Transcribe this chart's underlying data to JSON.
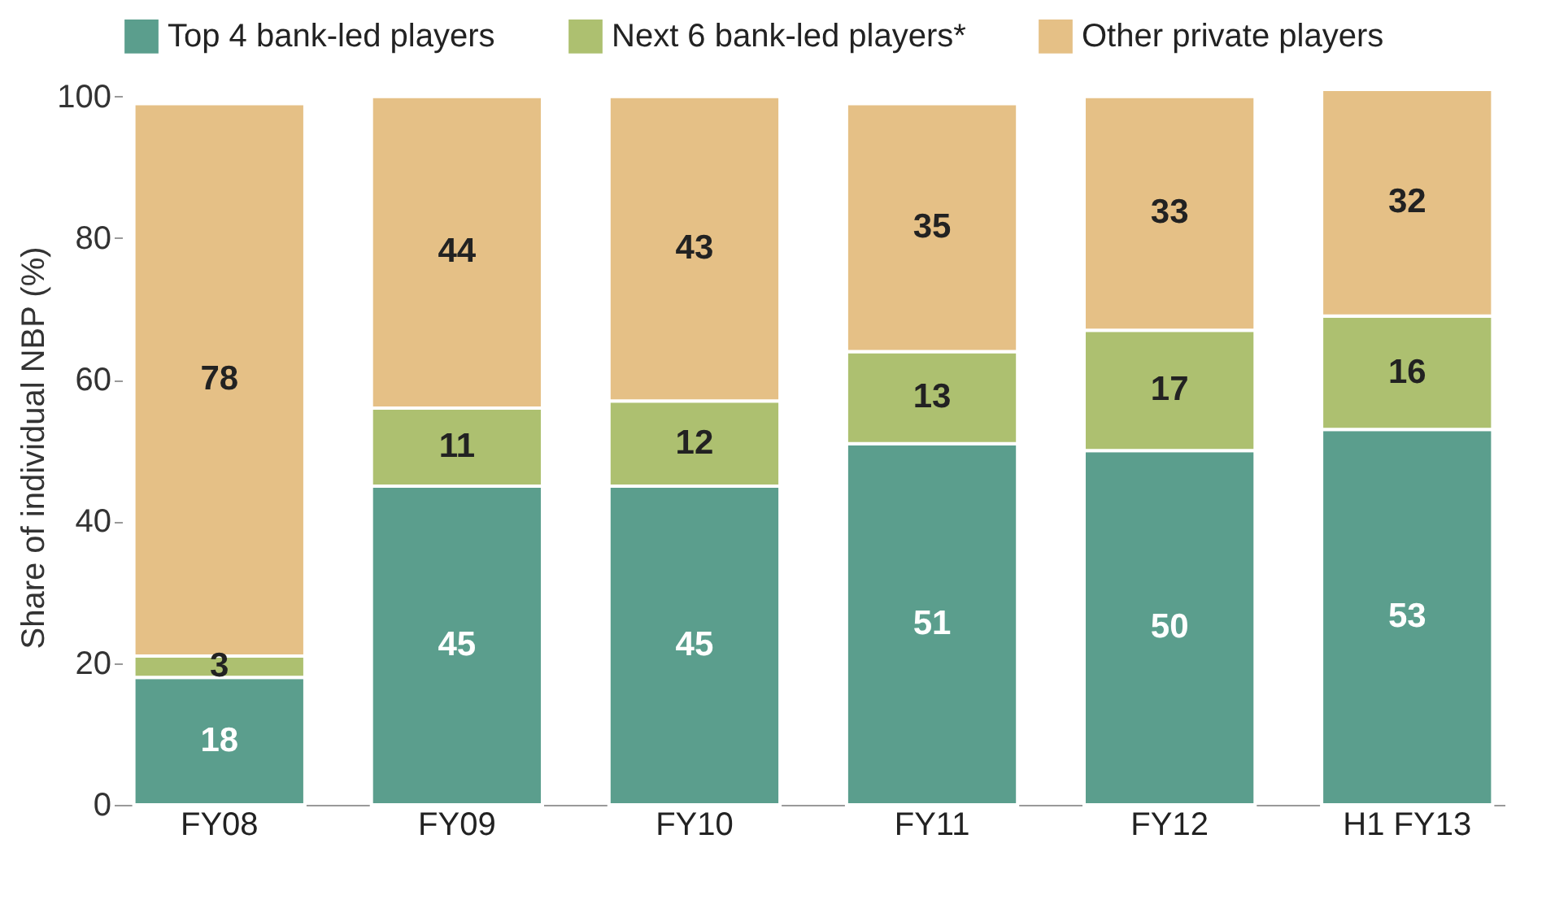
{
  "chart_data": {
    "type": "bar",
    "stacked": true,
    "ylabel": "Share of individual NBP (%)",
    "categories": [
      "FY08",
      "FY09",
      "FY10",
      "FY11",
      "FY12",
      "H1 FY13"
    ],
    "series": [
      {
        "name": "Top 4 bank-led players",
        "color": "#5b9e8d",
        "values": [
          18,
          45,
          45,
          51,
          50,
          53
        ]
      },
      {
        "name": "Next 6 bank-led players*",
        "color": "#adc070",
        "values": [
          3,
          11,
          12,
          13,
          17,
          16
        ]
      },
      {
        "name": "Other private players",
        "color": "#e5c086",
        "values": [
          78,
          44,
          43,
          35,
          33,
          32
        ]
      }
    ],
    "ylim": [
      0,
      101
    ],
    "yticks": [
      0,
      20,
      40,
      60,
      80,
      100
    ],
    "data_labels": true,
    "legend": "top",
    "grid": false
  }
}
